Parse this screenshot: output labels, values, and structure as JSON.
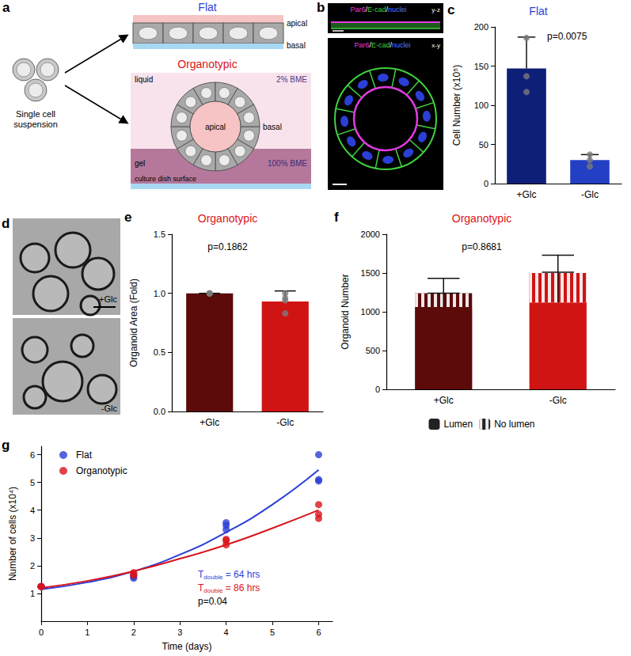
{
  "figure": {
    "panel_a": {
      "panel": "a",
      "left_label": [
        "Single cell",
        "suspension"
      ],
      "flat": {
        "title": "Flat",
        "top": "apical",
        "bottom": "basal"
      },
      "organotypic": {
        "title": "Organotypic",
        "liquid": "liquid",
        "liquid_bme": "2% BME",
        "gel": "gel",
        "gel_bme": "100% BME",
        "surface": "culture dish surface",
        "inner": "apical",
        "outer": "basal"
      }
    },
    "panel_b": {
      "panel": "b",
      "stain": [
        {
          "text": "Par6",
          "color": "#e23be2"
        },
        {
          "text": "/",
          "color": "#ffffff"
        },
        {
          "text": "E-cad",
          "color": "#3fd13f"
        },
        {
          "text": "/",
          "color": "#ffffff"
        },
        {
          "text": "nuclei",
          "color": "#5a7bff"
        }
      ],
      "views": [
        "y-z",
        "x-y"
      ]
    },
    "panel_d": {
      "panel": "d",
      "images": [
        "+Glc",
        "-Glc"
      ]
    }
  },
  "chart_data": [
    {
      "panel": "c",
      "type": "bar",
      "title": "Flat",
      "categories": [
        "+Glc",
        "-Glc"
      ],
      "values": [
        147,
        30
      ],
      "errors": [
        40,
        7
      ],
      "points": [
        [
          186,
          137,
          117
        ],
        [
          37,
          30,
          22
        ]
      ],
      "colors": [
        "#0e1f78",
        "#2340c4"
      ],
      "ylabel": "Cell Number (x10⁵)",
      "ylim": [
        0,
        200
      ],
      "yticks": [
        0,
        50,
        100,
        150,
        200
      ],
      "grid": false,
      "annotations": [
        {
          "parts": [
            "p=0.0075"
          ]
        }
      ]
    },
    {
      "panel": "e",
      "type": "bar",
      "title": "Organotypic",
      "categories": [
        "+Glc",
        "-Glc"
      ],
      "values": [
        1.0,
        0.93
      ],
      "errors": [
        0,
        0.09
      ],
      "points": [
        [
          1.0,
          1.0,
          1.0,
          1.0
        ],
        [
          1.0,
          0.96,
          0.94,
          0.83
        ]
      ],
      "colors": [
        "#5c0a0a",
        "#d01414"
      ],
      "ylabel": "Organoid Area (Fold)",
      "ylim": [
        0,
        1.5
      ],
      "yticks": [
        {
          "value": 0,
          "label": "0.0"
        },
        {
          "value": 0.5,
          "label": "0.5"
        },
        {
          "value": 1,
          "label": "1.0"
        },
        {
          "value": 1.5,
          "label": "1.5"
        }
      ],
      "grid": false,
      "annotations": [
        {
          "parts": [
            "p=0.1862"
          ]
        }
      ]
    },
    {
      "panel": "f",
      "type": "bar",
      "stacked": true,
      "title": "Organotypic",
      "categories": [
        "+Glc",
        "-Glc"
      ],
      "series": [
        {
          "name": "Lumen",
          "color": "#222222",
          "colors": [
            "#5c0a0a",
            "#d01414"
          ],
          "values": [
            1060,
            1120
          ],
          "errors": [
            180,
            390
          ]
        },
        {
          "name": "No lumen",
          "color": "#222222",
          "colors": [
            "#5c0a0a",
            "#d01414"
          ],
          "values": [
            180,
            380
          ],
          "errors": [
            190,
            230
          ]
        }
      ],
      "ylabel": "Organoid Number",
      "ylim": [
        0,
        2000
      ],
      "yticks": [
        0,
        500,
        1000,
        1500,
        2000
      ],
      "legend": "bottom",
      "grid": false,
      "annotations": [
        {
          "parts": [
            "p=0.8681"
          ]
        }
      ]
    },
    {
      "panel": "g",
      "type": "scatter",
      "xlabel": "Time (days)",
      "ylabel": "Number of cells (x10⁴)",
      "xlim": [
        0,
        6.3
      ],
      "xticks": [
        0,
        1,
        2,
        3,
        4,
        5,
        6
      ],
      "ylim": [
        0,
        6.3
      ],
      "yticks": [
        1,
        2,
        3,
        4,
        5,
        6
      ],
      "legend": "top-left",
      "grid": false,
      "series": [
        {
          "name": "Flat",
          "color": "#2b3fd6",
          "type": "scatter",
          "x": [
            0,
            0,
            0,
            2,
            2,
            2,
            4,
            4,
            4,
            6,
            6,
            6
          ],
          "values": [
            1.25,
            1.25,
            1.25,
            1.55,
            1.6,
            1.65,
            3.3,
            3.45,
            3.55,
            6.0,
            5.1,
            5.05
          ]
        },
        {
          "name": "Organotypic",
          "color": "#d8141c",
          "type": "scatter",
          "x": [
            0,
            0,
            0,
            2,
            2,
            2,
            4,
            4,
            4,
            6,
            6,
            6
          ],
          "values": [
            1.25,
            1.25,
            1.25,
            1.65,
            1.7,
            1.75,
            2.75,
            2.9,
            2.95,
            4.2,
            3.85,
            3.7
          ]
        },
        {
          "name": "Flat",
          "color": "#2b3fd6",
          "type": "line",
          "x": [
            0,
            1,
            2,
            3,
            4,
            5,
            6
          ],
          "values": [
            1.15,
            1.4,
            1.8,
            2.4,
            3.2,
            4.2,
            5.45
          ]
        },
        {
          "name": "Organotypic",
          "color": "#d8141c",
          "type": "line",
          "x": [
            0,
            1,
            2,
            3,
            4,
            5,
            6
          ],
          "values": [
            1.2,
            1.45,
            1.8,
            2.25,
            2.75,
            3.35,
            4.0
          ]
        }
      ],
      "annotations": [
        {
          "parts": [
            "T",
            "double",
            " = 64 hrs"
          ],
          "color": "#2b3fd6"
        },
        {
          "parts": [
            "T",
            "double",
            " = 86 hrs"
          ],
          "color": "#d8141c"
        },
        {
          "parts": [
            "p=0.04"
          ]
        }
      ]
    }
  ]
}
